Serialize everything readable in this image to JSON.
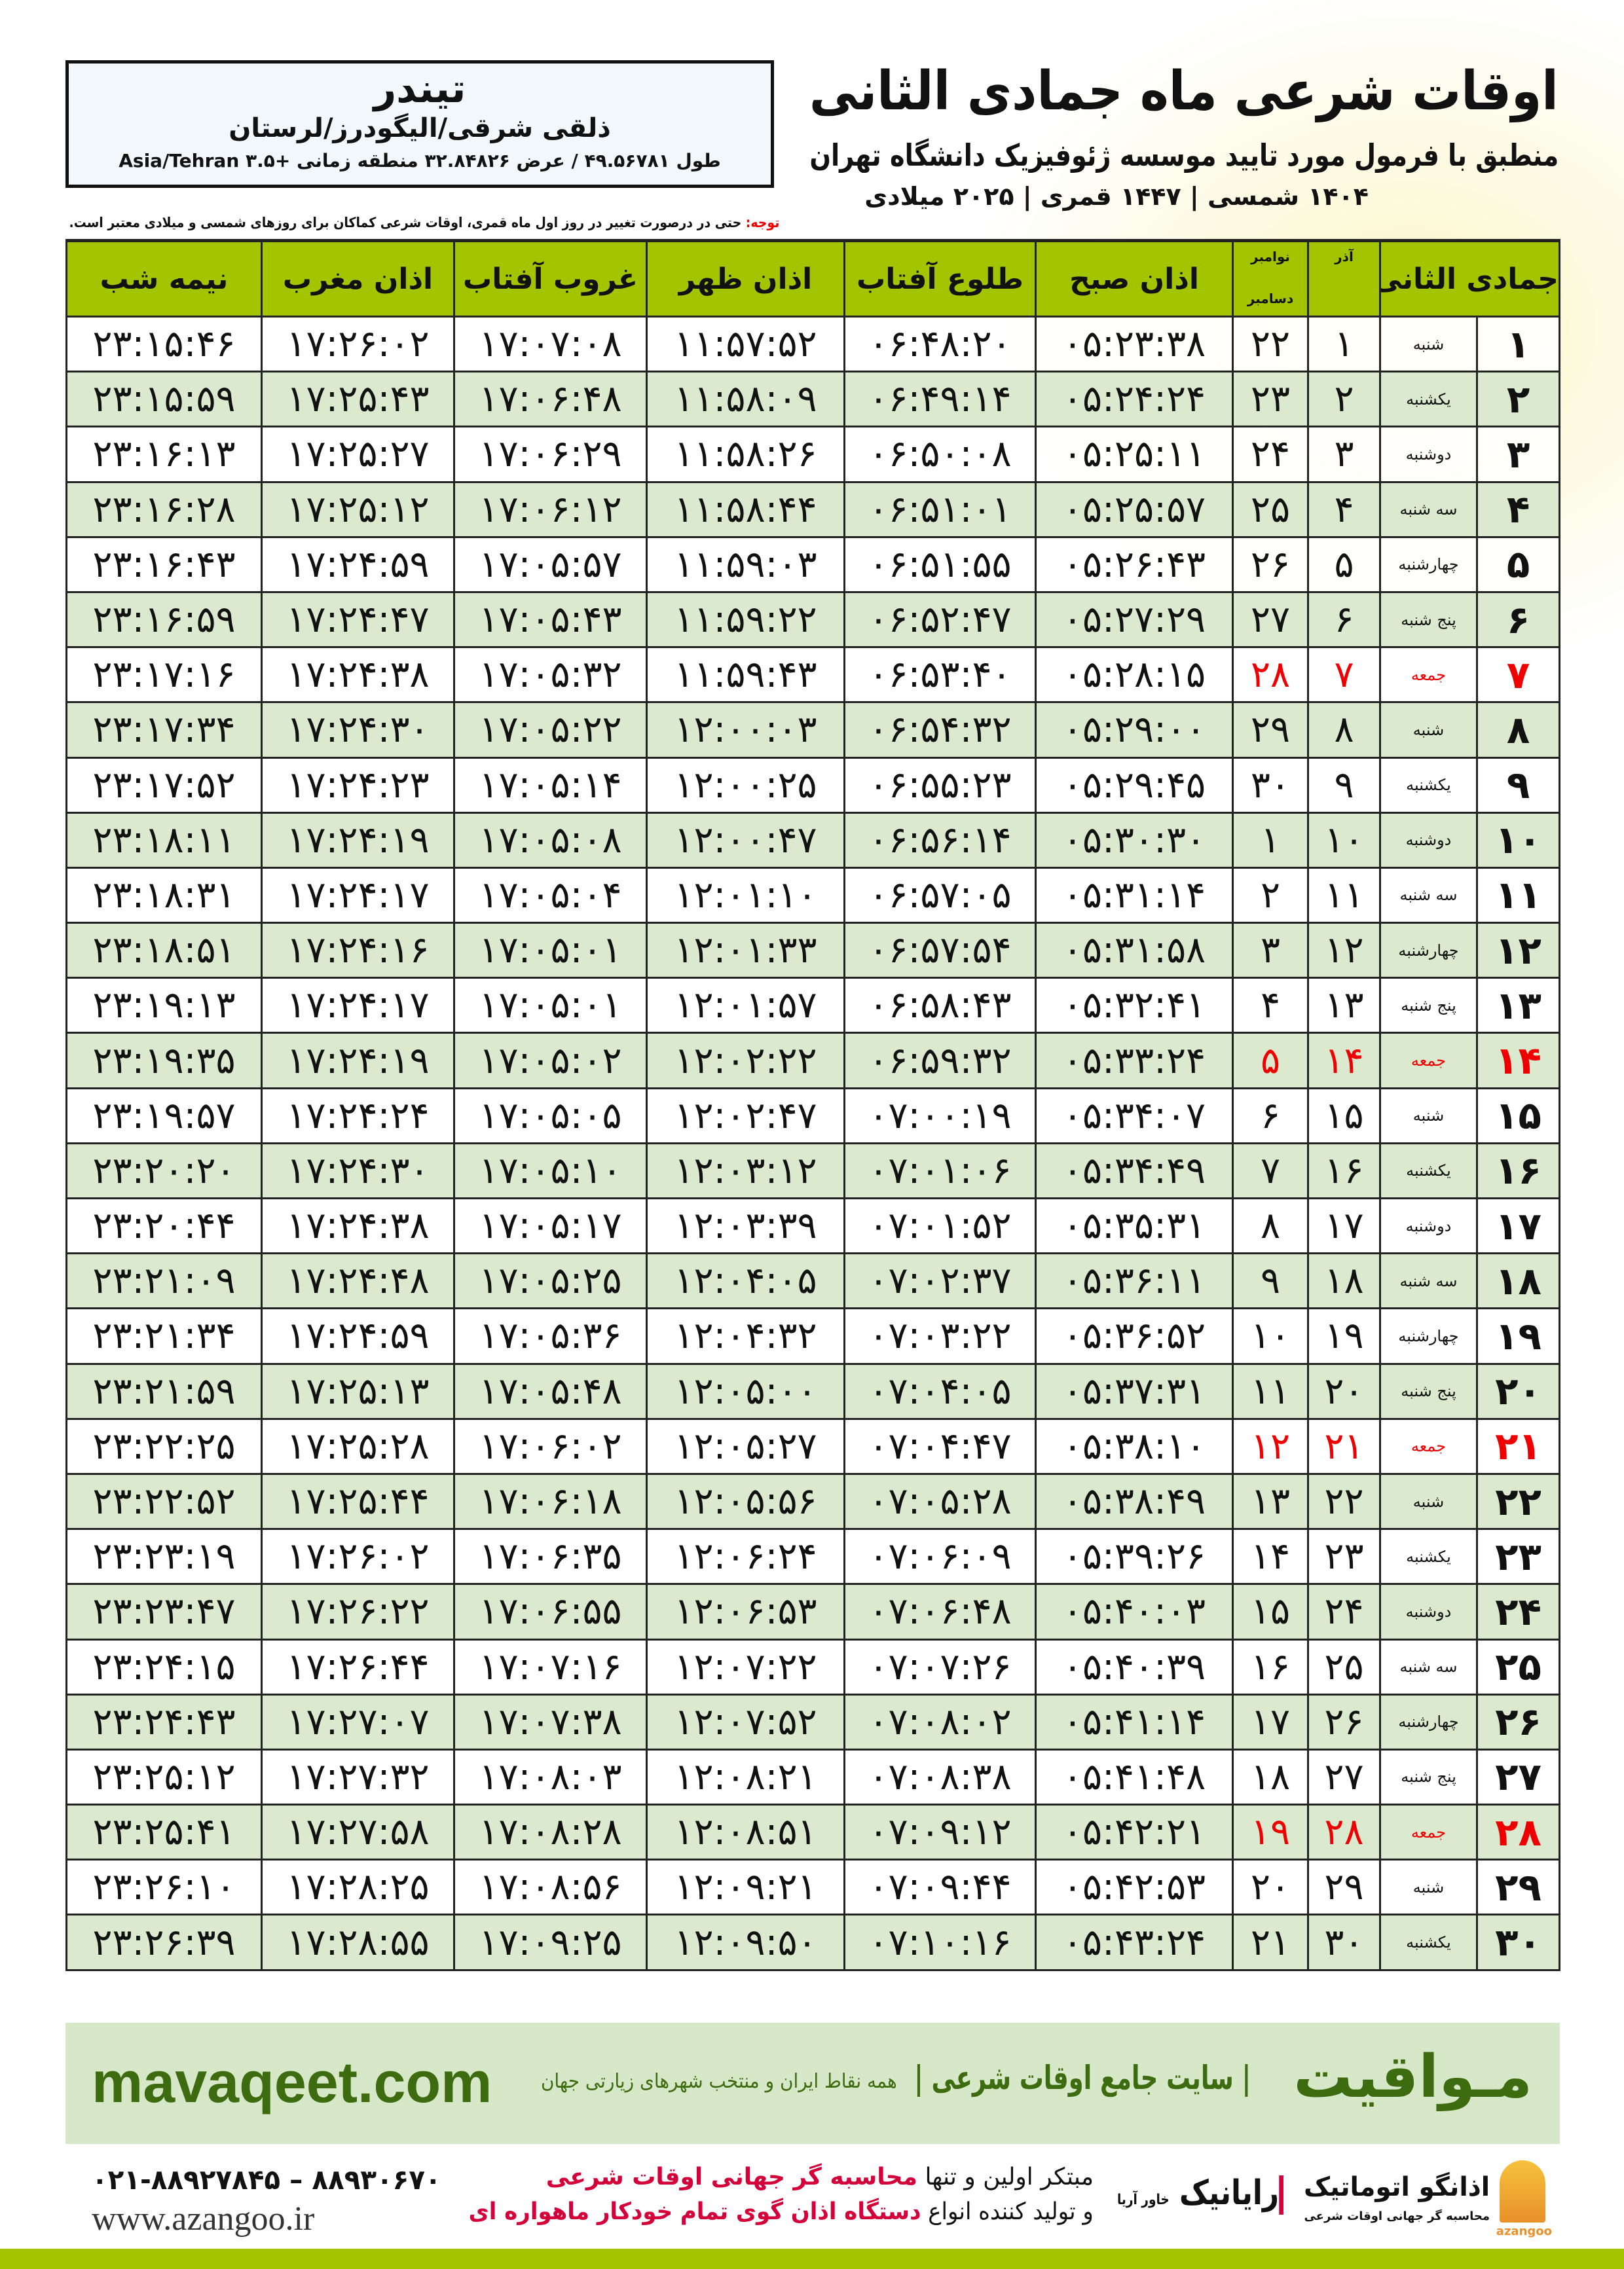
{
  "header": {
    "title": "اوقات شرعی ماه جمادی الثانی",
    "subtitle": "منطبق با فرمول مورد تایید موسسه ژئوفیزیک دانشگاه تهران",
    "years": "۱۴۰۴ شمسی | ۱۴۴۷ قمری | ۲۰۲۵ میلادی"
  },
  "location": {
    "city": "تیندر",
    "region": "ذلقی شرقی/الیگودرز/لرستان",
    "coords": "طول ۴۹.۵۶۷۸۱ / عرض ۳۲.۸۴۸۲۶ منطقه زمانی +۳.۵ Asia/Tehran"
  },
  "note": {
    "label": "توجه:",
    "text": " حتی در درصورت تغییر در روز اول ماه قمری، اوقات شرعی کماکان برای روزهای شمسی و میلادی معتبر است."
  },
  "table": {
    "headers": {
      "hijri": "جمادی الثانی",
      "azar": "آذر",
      "greg_top": "نوامبر",
      "greg_bottom": "دسامبر",
      "fajr": "اذان صبح",
      "sunrise": "طلوع آفتاب",
      "dhuhr": "اذان ظهر",
      "sunset": "غروب آفتاب",
      "maghrib": "اذان مغرب",
      "midnight": "نیمه شب"
    },
    "friday_color": "#e00000",
    "header_color": "#a4c400",
    "alt_row_color": "#dbe9cf",
    "rows": [
      [
        "۱",
        "شنبه",
        "۱",
        "۲۲",
        "۰۵:۲۳:۳۸",
        "۰۶:۴۸:۲۰",
        "۱۱:۵۷:۵۲",
        "۱۷:۰۷:۰۸",
        "۱۷:۲۶:۰۲",
        "۲۳:۱۵:۴۶"
      ],
      [
        "۲",
        "یکشنبه",
        "۲",
        "۲۳",
        "۰۵:۲۴:۲۴",
        "۰۶:۴۹:۱۴",
        "۱۱:۵۸:۰۹",
        "۱۷:۰۶:۴۸",
        "۱۷:۲۵:۴۳",
        "۲۳:۱۵:۵۹"
      ],
      [
        "۳",
        "دوشنبه",
        "۳",
        "۲۴",
        "۰۵:۲۵:۱۱",
        "۰۶:۵۰:۰۸",
        "۱۱:۵۸:۲۶",
        "۱۷:۰۶:۲۹",
        "۱۷:۲۵:۲۷",
        "۲۳:۱۶:۱۳"
      ],
      [
        "۴",
        "سه شنبه",
        "۴",
        "۲۵",
        "۰۵:۲۵:۵۷",
        "۰۶:۵۱:۰۱",
        "۱۱:۵۸:۴۴",
        "۱۷:۰۶:۱۲",
        "۱۷:۲۵:۱۲",
        "۲۳:۱۶:۲۸"
      ],
      [
        "۵",
        "چهارشنبه",
        "۵",
        "۲۶",
        "۰۵:۲۶:۴۳",
        "۰۶:۵۱:۵۵",
        "۱۱:۵۹:۰۳",
        "۱۷:۰۵:۵۷",
        "۱۷:۲۴:۵۹",
        "۲۳:۱۶:۴۳"
      ],
      [
        "۶",
        "پنج شنبه",
        "۶",
        "۲۷",
        "۰۵:۲۷:۲۹",
        "۰۶:۵۲:۴۷",
        "۱۱:۵۹:۲۲",
        "۱۷:۰۵:۴۳",
        "۱۷:۲۴:۴۷",
        "۲۳:۱۶:۵۹"
      ],
      [
        "۷",
        "جمعه",
        "۷",
        "۲۸",
        "۰۵:۲۸:۱۵",
        "۰۶:۵۳:۴۰",
        "۱۱:۵۹:۴۳",
        "۱۷:۰۵:۳۲",
        "۱۷:۲۴:۳۸",
        "۲۳:۱۷:۱۶"
      ],
      [
        "۸",
        "شنبه",
        "۸",
        "۲۹",
        "۰۵:۲۹:۰۰",
        "۰۶:۵۴:۳۲",
        "۱۲:۰۰:۰۳",
        "۱۷:۰۵:۲۲",
        "۱۷:۲۴:۳۰",
        "۲۳:۱۷:۳۴"
      ],
      [
        "۹",
        "یکشنبه",
        "۹",
        "۳۰",
        "۰۵:۲۹:۴۵",
        "۰۶:۵۵:۲۳",
        "۱۲:۰۰:۲۵",
        "۱۷:۰۵:۱۴",
        "۱۷:۲۴:۲۳",
        "۲۳:۱۷:۵۲"
      ],
      [
        "۱۰",
        "دوشنبه",
        "۱۰",
        "۱",
        "۰۵:۳۰:۳۰",
        "۰۶:۵۶:۱۴",
        "۱۲:۰۰:۴۷",
        "۱۷:۰۵:۰۸",
        "۱۷:۲۴:۱۹",
        "۲۳:۱۸:۱۱"
      ],
      [
        "۱۱",
        "سه شنبه",
        "۱۱",
        "۲",
        "۰۵:۳۱:۱۴",
        "۰۶:۵۷:۰۵",
        "۱۲:۰۱:۱۰",
        "۱۷:۰۵:۰۴",
        "۱۷:۲۴:۱۷",
        "۲۳:۱۸:۳۱"
      ],
      [
        "۱۲",
        "چهارشنبه",
        "۱۲",
        "۳",
        "۰۵:۳۱:۵۸",
        "۰۶:۵۷:۵۴",
        "۱۲:۰۱:۳۳",
        "۱۷:۰۵:۰۱",
        "۱۷:۲۴:۱۶",
        "۲۳:۱۸:۵۱"
      ],
      [
        "۱۳",
        "پنج شنبه",
        "۱۳",
        "۴",
        "۰۵:۳۲:۴۱",
        "۰۶:۵۸:۴۳",
        "۱۲:۰۱:۵۷",
        "۱۷:۰۵:۰۱",
        "۱۷:۲۴:۱۷",
        "۲۳:۱۹:۱۳"
      ],
      [
        "۱۴",
        "جمعه",
        "۱۴",
        "۵",
        "۰۵:۳۳:۲۴",
        "۰۶:۵۹:۳۲",
        "۱۲:۰۲:۲۲",
        "۱۷:۰۵:۰۲",
        "۱۷:۲۴:۱۹",
        "۲۳:۱۹:۳۵"
      ],
      [
        "۱۵",
        "شنبه",
        "۱۵",
        "۶",
        "۰۵:۳۴:۰۷",
        "۰۷:۰۰:۱۹",
        "۱۲:۰۲:۴۷",
        "۱۷:۰۵:۰۵",
        "۱۷:۲۴:۲۴",
        "۲۳:۱۹:۵۷"
      ],
      [
        "۱۶",
        "یکشنبه",
        "۱۶",
        "۷",
        "۰۵:۳۴:۴۹",
        "۰۷:۰۱:۰۶",
        "۱۲:۰۳:۱۲",
        "۱۷:۰۵:۱۰",
        "۱۷:۲۴:۳۰",
        "۲۳:۲۰:۲۰"
      ],
      [
        "۱۷",
        "دوشنبه",
        "۱۷",
        "۸",
        "۰۵:۳۵:۳۱",
        "۰۷:۰۱:۵۲",
        "۱۲:۰۳:۳۹",
        "۱۷:۰۵:۱۷",
        "۱۷:۲۴:۳۸",
        "۲۳:۲۰:۴۴"
      ],
      [
        "۱۸",
        "سه شنبه",
        "۱۸",
        "۹",
        "۰۵:۳۶:۱۱",
        "۰۷:۰۲:۳۷",
        "۱۲:۰۴:۰۵",
        "۱۷:۰۵:۲۵",
        "۱۷:۲۴:۴۸",
        "۲۳:۲۱:۰۹"
      ],
      [
        "۱۹",
        "چهارشنبه",
        "۱۹",
        "۱۰",
        "۰۵:۳۶:۵۲",
        "۰۷:۰۳:۲۲",
        "۱۲:۰۴:۳۲",
        "۱۷:۰۵:۳۶",
        "۱۷:۲۴:۵۹",
        "۲۳:۲۱:۳۴"
      ],
      [
        "۲۰",
        "پنج شنبه",
        "۲۰",
        "۱۱",
        "۰۵:۳۷:۳۱",
        "۰۷:۰۴:۰۵",
        "۱۲:۰۵:۰۰",
        "۱۷:۰۵:۴۸",
        "۱۷:۲۵:۱۳",
        "۲۳:۲۱:۵۹"
      ],
      [
        "۲۱",
        "جمعه",
        "۲۱",
        "۱۲",
        "۰۵:۳۸:۱۰",
        "۰۷:۰۴:۴۷",
        "۱۲:۰۵:۲۷",
        "۱۷:۰۶:۰۲",
        "۱۷:۲۵:۲۸",
        "۲۳:۲۲:۲۵"
      ],
      [
        "۲۲",
        "شنبه",
        "۲۲",
        "۱۳",
        "۰۵:۳۸:۴۹",
        "۰۷:۰۵:۲۸",
        "۱۲:۰۵:۵۶",
        "۱۷:۰۶:۱۸",
        "۱۷:۲۵:۴۴",
        "۲۳:۲۲:۵۲"
      ],
      [
        "۲۳",
        "یکشنبه",
        "۲۳",
        "۱۴",
        "۰۵:۳۹:۲۶",
        "۰۷:۰۶:۰۹",
        "۱۲:۰۶:۲۴",
        "۱۷:۰۶:۳۵",
        "۱۷:۲۶:۰۲",
        "۲۳:۲۳:۱۹"
      ],
      [
        "۲۴",
        "دوشنبه",
        "۲۴",
        "۱۵",
        "۰۵:۴۰:۰۳",
        "۰۷:۰۶:۴۸",
        "۱۲:۰۶:۵۳",
        "۱۷:۰۶:۵۵",
        "۱۷:۲۶:۲۲",
        "۲۳:۲۳:۴۷"
      ],
      [
        "۲۵",
        "سه شنبه",
        "۲۵",
        "۱۶",
        "۰۵:۴۰:۳۹",
        "۰۷:۰۷:۲۶",
        "۱۲:۰۷:۲۲",
        "۱۷:۰۷:۱۶",
        "۱۷:۲۶:۴۴",
        "۲۳:۲۴:۱۵"
      ],
      [
        "۲۶",
        "چهارشنبه",
        "۲۶",
        "۱۷",
        "۰۵:۴۱:۱۴",
        "۰۷:۰۸:۰۲",
        "۱۲:۰۷:۵۲",
        "۱۷:۰۷:۳۸",
        "۱۷:۲۷:۰۷",
        "۲۳:۲۴:۴۳"
      ],
      [
        "۲۷",
        "پنج شنبه",
        "۲۷",
        "۱۸",
        "۰۵:۴۱:۴۸",
        "۰۷:۰۸:۳۸",
        "۱۲:۰۸:۲۱",
        "۱۷:۰۸:۰۳",
        "۱۷:۲۷:۳۲",
        "۲۳:۲۵:۱۲"
      ],
      [
        "۲۸",
        "جمعه",
        "۲۸",
        "۱۹",
        "۰۵:۴۲:۲۱",
        "۰۷:۰۹:۱۲",
        "۱۲:۰۸:۵۱",
        "۱۷:۰۸:۲۸",
        "۱۷:۲۷:۵۸",
        "۲۳:۲۵:۴۱"
      ],
      [
        "۲۹",
        "شنبه",
        "۲۹",
        "۲۰",
        "۰۵:۴۲:۵۳",
        "۰۷:۰۹:۴۴",
        "۱۲:۰۹:۲۱",
        "۱۷:۰۸:۵۶",
        "۱۷:۲۸:۲۵",
        "۲۳:۲۶:۱۰"
      ],
      [
        "۳۰",
        "یکشنبه",
        "۳۰",
        "۲۱",
        "۰۵:۴۳:۲۴",
        "۰۷:۱۰:۱۶",
        "۱۲:۰۹:۵۰",
        "۱۷:۰۹:۲۵",
        "۱۷:۲۸:۵۵",
        "۲۳:۲۶:۳۹"
      ]
    ]
  },
  "banner": {
    "logo": "مـواقیت",
    "tagline": "| سایت جامع اوقات شرعی |",
    "tagline2": "همه نقاط ایران و منتخب شهرهای زیارتی جهان",
    "url": "mavaqeet.com"
  },
  "footer": {
    "phone": "۰۲۱-۸۸۹۲۷۸۴۵ – ۸۸۹۳۰۶۷۰",
    "web": "www.azangoo.ir",
    "line1_a": "مبتکر اولین و تنها ",
    "line1_b": "محاسبه گر جهانی اوقات شرعی",
    "line2_a": "و تولید کننده انواع ",
    "line2_b": "دستگاه اذان گوی تمام خودکار ماهواره ای",
    "raynik": "رایانیک",
    "raynik_sub": "خاور آریا",
    "azangoo_name": "اذانگو اتوماتیک",
    "azangoo_sub": "محاسبه گر جهانی اوقات شرعی",
    "azangoo_latin": "azangoo"
  }
}
